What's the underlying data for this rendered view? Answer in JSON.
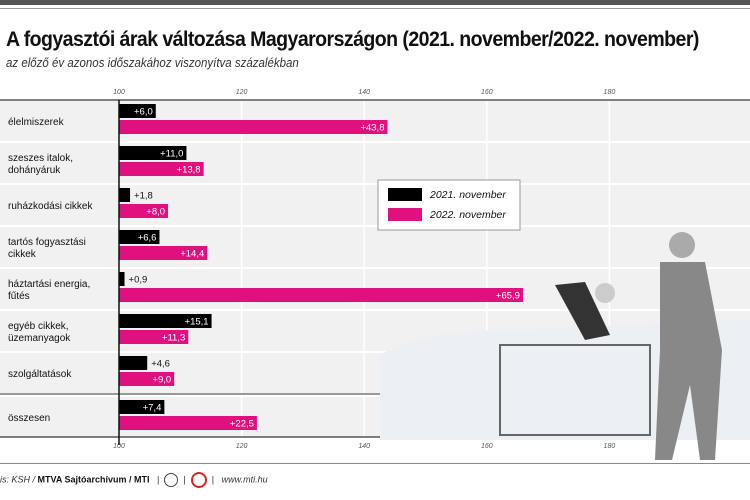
{
  "title": "A fogyasztói árak változása Magyarországon (2021. november/2022. november)",
  "subtitle": "az előző év azonos időszakához viszonyítva százalékban",
  "colors": {
    "2021": "#000000",
    "2022": "#e0107f"
  },
  "chart_data": {
    "type": "bar",
    "orientation": "horizontal",
    "title": "A fogyasztói árak változása Magyarországon (2021. november/2022. november)",
    "subtitle": "az előző év azonos időszakához viszonyítva százalékban",
    "categories": [
      "élelmiszerek",
      "szeszes italok, dohányáruk",
      "ruházkodási cikkek",
      "tartós fogyasztási cikkek",
      "háztartási energia, fűtés",
      "egyéb cikkek, üzemanyagok",
      "szolgáltatások",
      "összesen"
    ],
    "category_lines": [
      [
        "élelmiszerek"
      ],
      [
        "szeszes italok,",
        "dohányáruk"
      ],
      [
        "ruházkodási cikkek"
      ],
      [
        "tartós fogyasztási",
        "cikkek"
      ],
      [
        "háztartási energia,",
        "fűtés"
      ],
      [
        "egyéb cikkek,",
        "üzemanyagok"
      ],
      [
        "szolgáltatások"
      ],
      [
        "összesen"
      ]
    ],
    "series": [
      {
        "name": "2021. november",
        "color": "#000000",
        "values": [
          6.0,
          11.0,
          1.8,
          6.6,
          0.9,
          15.1,
          4.6,
          7.4
        ],
        "labels": [
          "+6,0",
          "+11,0",
          "+1,8",
          "+6,6",
          "+0,9",
          "+15,1",
          "+4,6",
          "+7,4"
        ]
      },
      {
        "name": "2022. november",
        "color": "#e0107f",
        "values": [
          43.8,
          13.8,
          8.0,
          14.4,
          65.9,
          11.3,
          9.0,
          22.5
        ],
        "labels": [
          "+43,8",
          "+13,8",
          "+8,0",
          "+14,4",
          "+65,9",
          "+11,3",
          "+9,0",
          "+22,5"
        ]
      }
    ],
    "baseline": 100,
    "xlim": [
      100,
      200
    ],
    "xticks": [
      100,
      120,
      140,
      160,
      180
    ],
    "xtick_labels": [
      "100",
      "120",
      "140",
      "160",
      "180"
    ],
    "legend": "center",
    "grid": true
  },
  "footer": {
    "source_prefix": "is: KSH / ",
    "source_bold": "MTVA Sajtóarchívum / MTI",
    "url": "www.mti.hu"
  }
}
